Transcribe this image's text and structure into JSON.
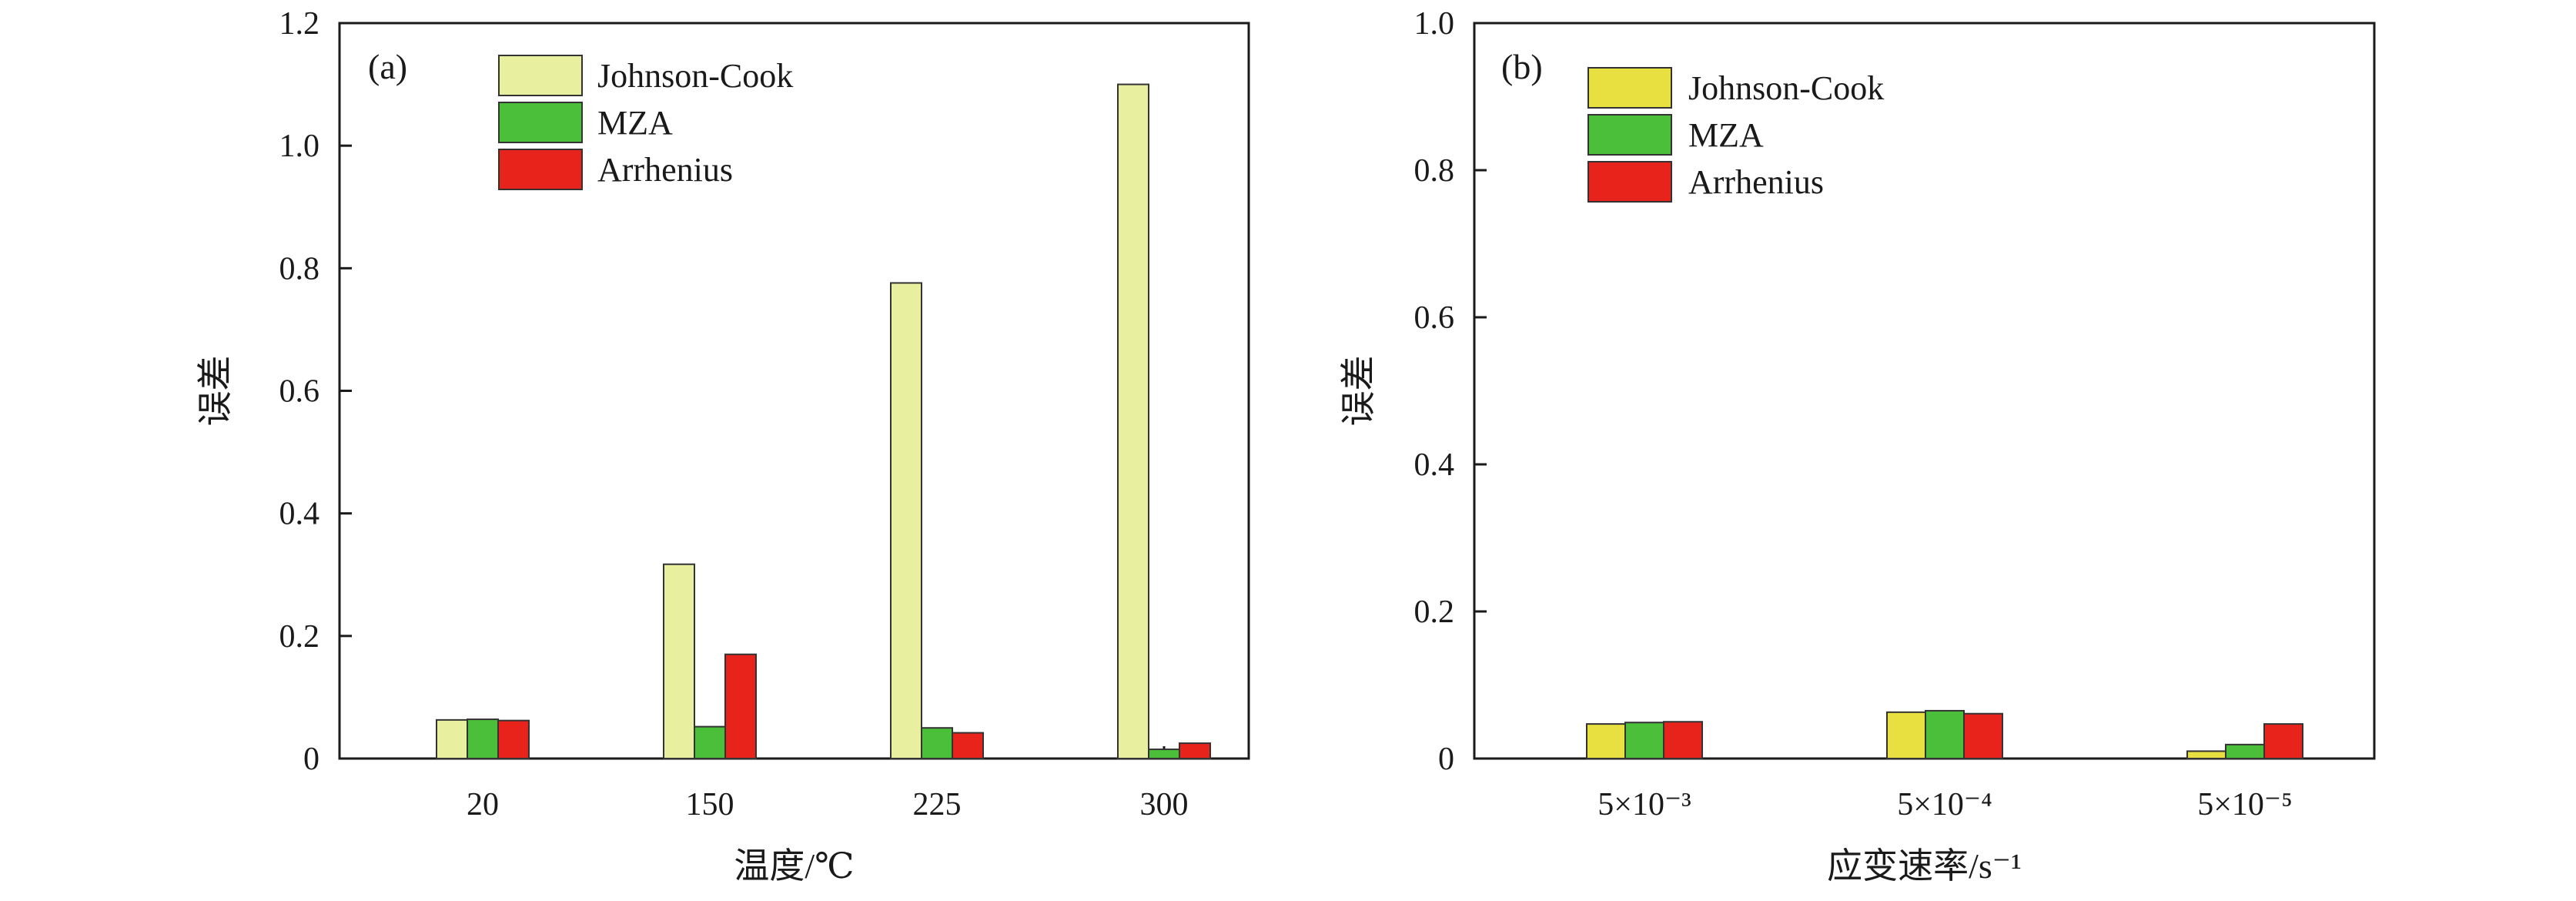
{
  "chart_data": [
    {
      "type": "bar",
      "panel_label": "(a)",
      "title": "",
      "xlabel": "温度/℃",
      "ylabel": "误差",
      "categories": [
        "20",
        "150",
        "225",
        "300"
      ],
      "ylim": [
        0,
        1.2
      ],
      "yticks": [
        "0",
        "0.2",
        "0.4",
        "0.6",
        "0.8",
        "1.0",
        "1.2"
      ],
      "legend_position": "top-left",
      "series": [
        {
          "name": "Johnson-Cook",
          "color": "#e8f0a0",
          "values": [
            0.063,
            0.317,
            0.776,
            1.1
          ]
        },
        {
          "name": "MZA",
          "color": "#4cbf3a",
          "values": [
            0.064,
            0.052,
            0.05,
            0.015
          ]
        },
        {
          "name": "Arrhenius",
          "color": "#e8231c",
          "values": [
            0.062,
            0.17,
            0.042,
            0.025
          ]
        }
      ]
    },
    {
      "type": "bar",
      "panel_label": "(b)",
      "title": "",
      "xlabel": "应变速率/s⁻¹",
      "ylabel": "误差",
      "categories": [
        "5×10⁻³",
        "5×10⁻⁴",
        "5×10⁻⁵"
      ],
      "ylim": [
        0,
        1.0
      ],
      "yticks": [
        "0",
        "0.2",
        "0.4",
        "0.6",
        "0.8",
        "1.0"
      ],
      "legend_position": "top-left",
      "series": [
        {
          "name": "Johnson-Cook",
          "color": "#e8e040",
          "values": [
            0.047,
            0.063,
            0.01
          ]
        },
        {
          "name": "MZA",
          "color": "#4cbf3a",
          "values": [
            0.049,
            0.065,
            0.019
          ]
        },
        {
          "name": "Arrhenius",
          "color": "#e8231c",
          "values": [
            0.05,
            0.061,
            0.047
          ]
        }
      ]
    }
  ]
}
